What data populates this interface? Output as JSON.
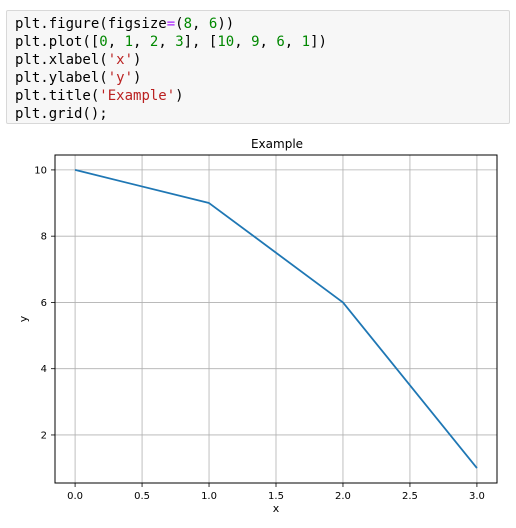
{
  "code_cell": {
    "lines": [
      [
        {
          "text": "plt.figure(figsize",
          "kind": "plain"
        },
        {
          "text": "=",
          "kind": "op"
        },
        {
          "text": "(",
          "kind": "plain"
        },
        {
          "text": "8",
          "kind": "num"
        },
        {
          "text": ", ",
          "kind": "plain"
        },
        {
          "text": "6",
          "kind": "num"
        },
        {
          "text": "))",
          "kind": "plain"
        }
      ],
      [
        {
          "text": "plt.plot([",
          "kind": "plain"
        },
        {
          "text": "0",
          "kind": "num"
        },
        {
          "text": ", ",
          "kind": "plain"
        },
        {
          "text": "1",
          "kind": "num"
        },
        {
          "text": ", ",
          "kind": "plain"
        },
        {
          "text": "2",
          "kind": "num"
        },
        {
          "text": ", ",
          "kind": "plain"
        },
        {
          "text": "3",
          "kind": "num"
        },
        {
          "text": "], [",
          "kind": "plain"
        },
        {
          "text": "10",
          "kind": "num"
        },
        {
          "text": ", ",
          "kind": "plain"
        },
        {
          "text": "9",
          "kind": "num"
        },
        {
          "text": ", ",
          "kind": "plain"
        },
        {
          "text": "6",
          "kind": "num"
        },
        {
          "text": ", ",
          "kind": "plain"
        },
        {
          "text": "1",
          "kind": "num"
        },
        {
          "text": "])",
          "kind": "plain"
        }
      ],
      [
        {
          "text": "plt.xlabel(",
          "kind": "plain"
        },
        {
          "text": "'x'",
          "kind": "str"
        },
        {
          "text": ")",
          "kind": "plain"
        }
      ],
      [
        {
          "text": "plt.ylabel(",
          "kind": "plain"
        },
        {
          "text": "'y'",
          "kind": "str"
        },
        {
          "text": ")",
          "kind": "plain"
        }
      ],
      [
        {
          "text": "plt.title(",
          "kind": "plain"
        },
        {
          "text": "'Example'",
          "kind": "str"
        },
        {
          "text": ")",
          "kind": "plain"
        }
      ],
      [
        {
          "text": "plt.grid();",
          "kind": "plain"
        }
      ]
    ]
  },
  "chart_data": {
    "type": "line",
    "title": "Example",
    "xlabel": "x",
    "ylabel": "y",
    "xlim": [
      -0.15,
      3.15
    ],
    "ylim": [
      0.55,
      10.45
    ],
    "xticks": [
      0.0,
      0.5,
      1.0,
      1.5,
      2.0,
      2.5,
      3.0
    ],
    "xtick_labels": [
      "0.0",
      "0.5",
      "1.0",
      "1.5",
      "2.0",
      "2.5",
      "3.0"
    ],
    "yticks": [
      2,
      4,
      6,
      8,
      10
    ],
    "ytick_labels": [
      "2",
      "4",
      "6",
      "8",
      "10"
    ],
    "grid": true,
    "series": [
      {
        "x": [
          0,
          1,
          2,
          3
        ],
        "y": [
          10,
          9,
          6,
          1
        ],
        "color": "#1f77b4"
      }
    ]
  },
  "colors": {
    "line": "#1f77b4",
    "grid": "#b0b0b0",
    "axes": "#000000"
  }
}
